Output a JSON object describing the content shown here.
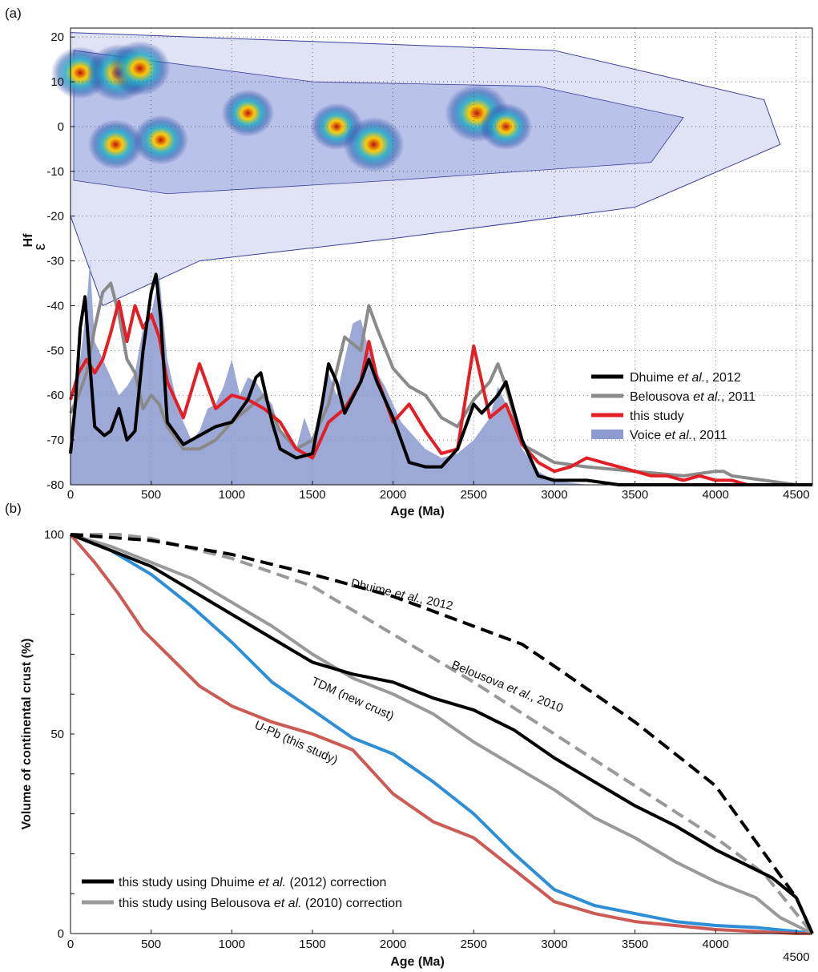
{
  "chart_data": [
    {
      "panel": "(a)",
      "type": "line",
      "xlabel": "Age (Ma)",
      "ylabel_main": "Hf",
      "ylabel_prefix": "ε",
      "xlim": [
        0,
        4600
      ],
      "ylim": [
        -80,
        22
      ],
      "x_ticks": [
        0,
        500,
        1000,
        1500,
        2000,
        2500,
        3000,
        3500,
        4000,
        4500
      ],
      "y_ticks": [
        20,
        10,
        0,
        -10,
        -20,
        -30,
        -40,
        -50,
        -60,
        -70,
        -80
      ],
      "grid": "dotted",
      "legend_position": "bottom-right",
      "density_background": {
        "description": "contoured eHf vs age density of zircon data",
        "hotspots": [
          {
            "x": 60,
            "y": 12,
            "intensity": 0.8
          },
          {
            "x": 300,
            "y": 12,
            "intensity": 1.0
          },
          {
            "x": 430,
            "y": 13,
            "intensity": 0.9
          },
          {
            "x": 280,
            "y": -4,
            "intensity": 0.7
          },
          {
            "x": 560,
            "y": -3,
            "intensity": 0.7
          },
          {
            "x": 1100,
            "y": 3,
            "intensity": 0.6
          },
          {
            "x": 1650,
            "y": 0,
            "intensity": 0.6
          },
          {
            "x": 1880,
            "y": -4,
            "intensity": 0.9
          },
          {
            "x": 2520,
            "y": 3,
            "intensity": 1.0
          },
          {
            "x": 2700,
            "y": 0,
            "intensity": 0.6
          }
        ]
      },
      "series": [
        {
          "name_parts": [
            "Dhuime ",
            "et al.",
            ", 2012"
          ],
          "color": "#000000",
          "x": [
            0,
            30,
            60,
            90,
            120,
            150,
            180,
            210,
            250,
            300,
            350,
            400,
            450,
            500,
            530,
            560,
            600,
            700,
            800,
            900,
            1000,
            1100,
            1150,
            1180,
            1250,
            1300,
            1400,
            1500,
            1560,
            1600,
            1650,
            1700,
            1800,
            1850,
            1900,
            2000,
            2100,
            2200,
            2300,
            2400,
            2500,
            2550,
            2600,
            2650,
            2700,
            2800,
            2900,
            3000,
            3200,
            3400,
            3600,
            4000,
            4500,
            4600
          ],
          "y": [
            -73,
            -62,
            -45,
            -38,
            -53,
            -67,
            -68,
            -69,
            -68,
            -63,
            -70,
            -68,
            -50,
            -37,
            -33,
            -43,
            -66,
            -71,
            -69,
            -67,
            -66,
            -61,
            -56,
            -55,
            -66,
            -72,
            -74,
            -73,
            -62,
            -53,
            -57,
            -64,
            -57,
            -52,
            -57,
            -65,
            -75,
            -76,
            -76,
            -72,
            -62,
            -64,
            -62,
            -60,
            -57,
            -70,
            -78,
            -79,
            -79,
            -80,
            -80,
            -80,
            -80,
            -80
          ]
        },
        {
          "name_parts": [
            "Belousova ",
            "et al.",
            ", 2011"
          ],
          "color": "#8a8a8a",
          "x": [
            0,
            50,
            100,
            150,
            200,
            250,
            300,
            350,
            400,
            450,
            500,
            550,
            600,
            700,
            800,
            900,
            1000,
            1100,
            1200,
            1300,
            1400,
            1500,
            1600,
            1700,
            1800,
            1850,
            1900,
            2000,
            2100,
            2200,
            2300,
            2400,
            2500,
            2600,
            2650,
            2700,
            2800,
            3000,
            3200,
            3500,
            3800,
            4000,
            4050,
            4100,
            4300,
            4500,
            4600
          ],
          "y": [
            -64,
            -60,
            -55,
            -45,
            -37,
            -35,
            -42,
            -52,
            -55,
            -63,
            -60,
            -62,
            -67,
            -72,
            -72,
            -70,
            -66,
            -63,
            -60,
            -68,
            -72,
            -70,
            -62,
            -47,
            -50,
            -40,
            -45,
            -54,
            -58,
            -60,
            -65,
            -67,
            -61,
            -57,
            -53,
            -58,
            -71,
            -75,
            -76,
            -77,
            -78,
            -77,
            -77,
            -78,
            -79,
            -80,
            -80
          ]
        },
        {
          "name_parts": [
            "this study"
          ],
          "color": "#e31e24",
          "x": [
            0,
            50,
            100,
            150,
            200,
            250,
            300,
            350,
            400,
            450,
            500,
            550,
            600,
            700,
            800,
            900,
            1000,
            1100,
            1200,
            1300,
            1400,
            1500,
            1600,
            1700,
            1800,
            1850,
            1900,
            2000,
            2100,
            2200,
            2300,
            2400,
            2500,
            2600,
            2700,
            2800,
            2900,
            3000,
            3100,
            3200,
            3300,
            3400,
            3500,
            3600,
            3700,
            3800,
            3900,
            4000,
            4100,
            4200,
            4300,
            4400,
            4500,
            4600
          ],
          "y": [
            -61,
            -55,
            -52,
            -55,
            -52,
            -46,
            -39,
            -48,
            -40,
            -45,
            -42,
            -47,
            -57,
            -65,
            -53,
            -63,
            -60,
            -61,
            -63,
            -66,
            -72,
            -74,
            -66,
            -63,
            -57,
            -48,
            -56,
            -66,
            -62,
            -68,
            -73,
            -72,
            -49,
            -65,
            -62,
            -71,
            -75,
            -77,
            -76,
            -74,
            -75,
            -76,
            -77,
            -78,
            -78,
            -79,
            -78,
            -79,
            -79,
            -80,
            -80,
            -80,
            -80,
            -80
          ]
        },
        {
          "name_parts": [
            "Voice ",
            "et al.",
            ", 2011"
          ],
          "color": "#8b9ad0",
          "fill": true,
          "x": [
            0,
            50,
            100,
            120,
            150,
            200,
            250,
            300,
            350,
            400,
            450,
            500,
            550,
            600,
            650,
            700,
            750,
            800,
            850,
            900,
            950,
            1000,
            1050,
            1100,
            1150,
            1200,
            1250,
            1300,
            1350,
            1400,
            1450,
            1500,
            1550,
            1600,
            1650,
            1700,
            1750,
            1800,
            1850,
            1900,
            1950,
            2000,
            2050,
            2100,
            2150,
            2200,
            2300,
            2400,
            2500,
            2600,
            2650,
            2700,
            2800,
            2900,
            3000,
            3200,
            3500,
            4000,
            4600
          ],
          "y": [
            -68,
            -55,
            -40,
            -30,
            -48,
            -52,
            -56,
            -60,
            -58,
            -55,
            -45,
            -42,
            -33,
            -52,
            -60,
            -66,
            -70,
            -68,
            -63,
            -62,
            -58,
            -52,
            -60,
            -56,
            -57,
            -60,
            -62,
            -68,
            -70,
            -72,
            -65,
            -70,
            -62,
            -55,
            -60,
            -52,
            -44,
            -43,
            -50,
            -55,
            -58,
            -62,
            -66,
            -68,
            -70,
            -72,
            -74,
            -73,
            -70,
            -65,
            -58,
            -62,
            -72,
            -77,
            -79,
            -80,
            -80,
            -80,
            -80
          ]
        }
      ]
    },
    {
      "panel": "(b)",
      "type": "line",
      "xlabel": "Age (Ma)",
      "ylabel": "Volume of continental crust (%)",
      "xlim": [
        0,
        4600
      ],
      "ylim": [
        0,
        100
      ],
      "x_ticks": [
        0,
        500,
        1000,
        1500,
        2000,
        2500,
        3000,
        3500,
        4000,
        4500
      ],
      "y_ticks": [
        0,
        50,
        100
      ],
      "legend_position": "bottom-left",
      "series": [
        {
          "id": "dhuime-2012",
          "color": "#000000",
          "dashed": true,
          "x": [
            0,
            500,
            1000,
            1500,
            2000,
            2500,
            2800,
            3000,
            3500,
            4000,
            4500,
            4600
          ],
          "y": [
            100,
            98.5,
            95,
            90,
            84.5,
            77,
            72.5,
            67,
            53,
            37,
            9,
            0
          ]
        },
        {
          "id": "belousova-2010",
          "color": "#999999",
          "dashed": true,
          "x": [
            0,
            300,
            500,
            1000,
            1500,
            2000,
            2500,
            3000,
            3500,
            4000,
            4300,
            4600
          ],
          "y": [
            100,
            100,
            99,
            94,
            87,
            75,
            63,
            50,
            37,
            24,
            15,
            0
          ]
        },
        {
          "id": "this-study-dhuime-correction",
          "color": "#000000",
          "x": [
            0,
            250,
            500,
            750,
            1000,
            1250,
            1500,
            1750,
            2000,
            2250,
            2500,
            2750,
            3000,
            3250,
            3500,
            3750,
            4000,
            4250,
            4350,
            4500,
            4600
          ],
          "y": [
            100,
            96,
            92,
            86,
            80,
            74,
            68,
            65,
            63,
            59,
            56,
            51,
            44,
            38,
            32,
            27,
            21,
            16,
            14,
            9,
            0
          ]
        },
        {
          "id": "this-study-belousova-correction",
          "color": "#999999",
          "x": [
            0,
            250,
            500,
            750,
            1000,
            1250,
            1500,
            1750,
            2000,
            2250,
            2500,
            2750,
            3000,
            3250,
            3500,
            3750,
            4000,
            4250,
            4400,
            4600
          ],
          "y": [
            100,
            97,
            93,
            89,
            83,
            77,
            70,
            64,
            60,
            55,
            48,
            42,
            36,
            29,
            24,
            18,
            13,
            9,
            4,
            0
          ]
        },
        {
          "id": "tdm-new-crust",
          "color": "#2e8fd6",
          "x": [
            0,
            250,
            500,
            750,
            1000,
            1250,
            1500,
            1750,
            2000,
            2250,
            2500,
            2750,
            3000,
            3250,
            3500,
            3750,
            4000,
            4250,
            4500,
            4600
          ],
          "y": [
            100,
            96,
            90,
            82,
            73,
            63,
            56,
            49,
            45,
            38,
            30,
            20,
            11,
            7,
            5,
            3,
            2,
            1.5,
            0.5,
            0
          ]
        },
        {
          "id": "u-pb-this-study",
          "color": "#cc5a55",
          "x": [
            0,
            150,
            300,
            450,
            600,
            800,
            1000,
            1250,
            1500,
            1750,
            2000,
            2250,
            2500,
            2750,
            3000,
            3250,
            3500,
            3750,
            4000,
            4250,
            4500,
            4600
          ],
          "y": [
            100,
            93,
            85,
            76,
            70,
            62,
            57,
            53,
            50,
            46,
            35,
            28,
            24,
            16,
            8,
            5,
            3,
            2,
            1,
            0.5,
            0,
            0
          ]
        }
      ],
      "curve_labels": [
        {
          "series": "dhuime-2012",
          "parts": [
            "Dhuime ",
            "et al.",
            ", 2012"
          ]
        },
        {
          "series": "belousova-2010",
          "parts": [
            "Belousova ",
            "et al.",
            ", 2010"
          ]
        },
        {
          "series": "tdm-new-crust",
          "parts": [
            "TDM (new crust)"
          ]
        },
        {
          "series": "u-pb-this-study",
          "parts": [
            "U-Pb (this study)"
          ]
        }
      ],
      "legend": [
        {
          "series": "this-study-dhuime-correction",
          "parts": [
            "this study using Dhuime ",
            "et al.",
            " (2012) correction"
          ]
        },
        {
          "series": "this-study-belousova-correction",
          "parts": [
            "this study using Belousova ",
            "et al.",
            " (2010) correction"
          ]
        }
      ]
    }
  ]
}
